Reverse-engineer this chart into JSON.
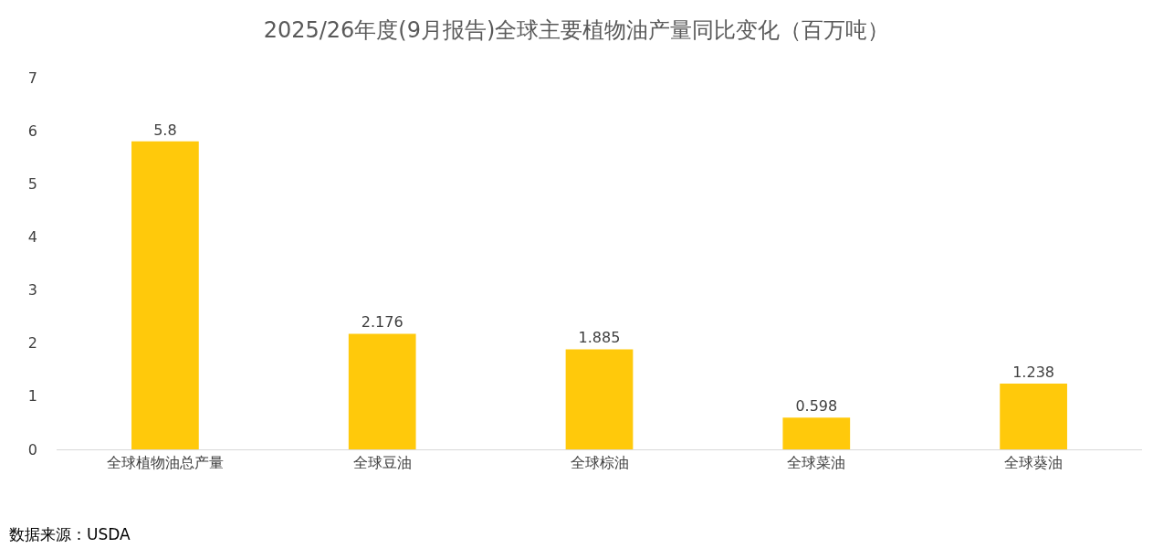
{
  "chart_data": {
    "type": "bar",
    "title": "2025/26年度(9月报告)全球主要植物油产量同比变化（百万吨）",
    "categories": [
      "全球植物油总产量",
      "全球豆油",
      "全球棕油",
      "全球菜油",
      "全球葵油"
    ],
    "values": [
      5.8,
      2.176,
      1.885,
      0.598,
      1.238
    ],
    "color": "#ffc90b",
    "ylim": [
      0,
      7
    ],
    "yticks": [
      0,
      1,
      2,
      3,
      4,
      5,
      6,
      7
    ],
    "grid": false,
    "data_labels": true,
    "annotations": [
      "数据来源：USDA"
    ]
  }
}
